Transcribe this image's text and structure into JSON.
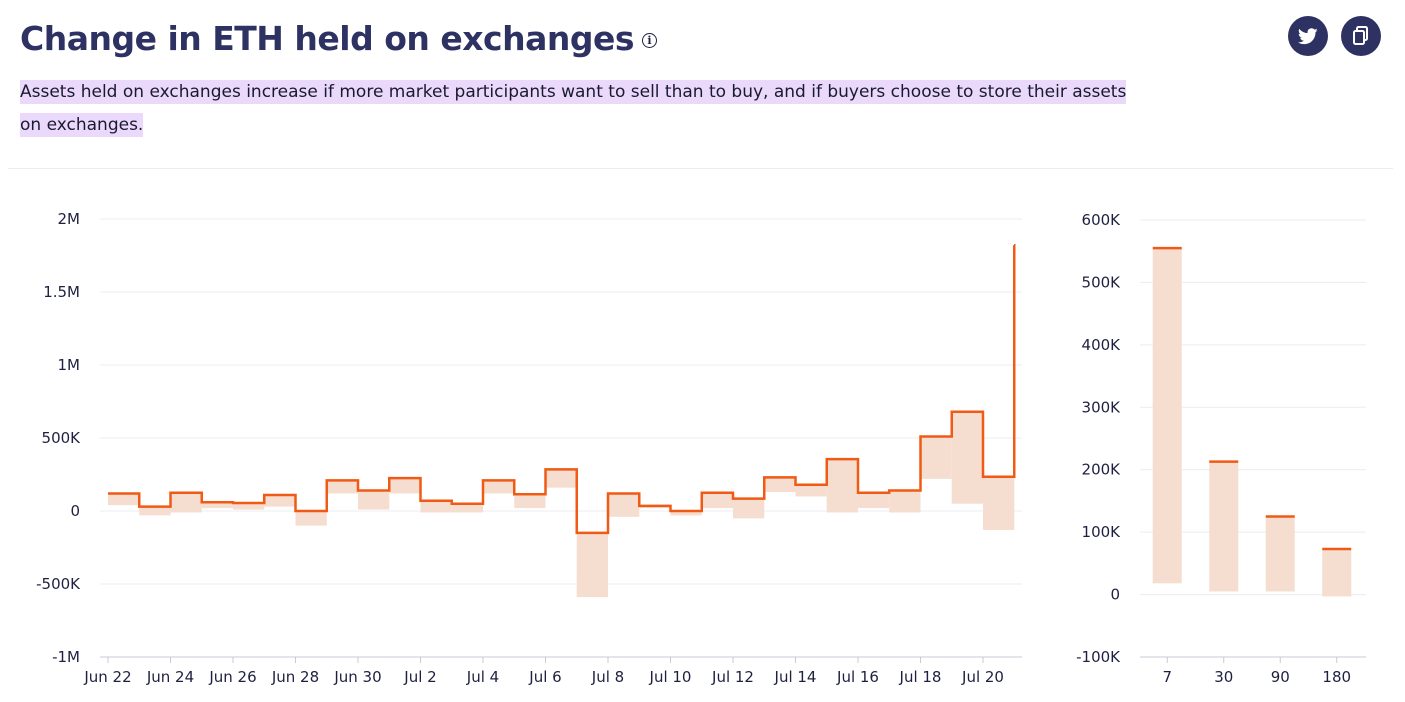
{
  "header": {
    "title": "Change in ETH held on exchanges",
    "info_icon": "info-icon",
    "description": "Assets held on exchanges increase if more market participants want to sell than to buy, and if buyers choose to store their assets on exchanges.",
    "share_buttons": [
      {
        "icon": "twitter-icon"
      },
      {
        "icon": "copy-icon"
      }
    ]
  },
  "colors": {
    "title": "#2e3262",
    "line": "#f05a14",
    "fill": "#f5ddd0",
    "highlight": "#ead9fb",
    "button": "#2e3262",
    "grid": "#ececf0"
  },
  "chart_data": [
    {
      "type": "line",
      "style": "step with shaded min-max band",
      "x_tick_labels": [
        "Jun 22",
        "Jun 24",
        "Jun 26",
        "Jun 28",
        "Jun 30",
        "Jul 2",
        "Jul 4",
        "Jul 6",
        "Jul 8",
        "Jul 10",
        "Jul 12",
        "Jul 14",
        "Jul 16",
        "Jul 18",
        "Jul 20"
      ],
      "y_tick_labels": [
        "2M",
        "1.5M",
        "1M",
        "500K",
        "0",
        "-500K",
        "-1M"
      ],
      "ylim": [
        -1000000,
        2000000
      ],
      "grid": true,
      "x": [
        "Jun 22",
        "Jun 23",
        "Jun 24",
        "Jun 25",
        "Jun 26",
        "Jun 27",
        "Jun 28",
        "Jun 29",
        "Jun 30",
        "Jul 1",
        "Jul 2",
        "Jul 3",
        "Jul 4",
        "Jul 5",
        "Jul 6",
        "Jul 7",
        "Jul 8",
        "Jul 9",
        "Jul 10",
        "Jul 11",
        "Jul 12",
        "Jul 13",
        "Jul 14",
        "Jul 15",
        "Jul 16",
        "Jul 17",
        "Jul 18",
        "Jul 19",
        "Jul 20",
        "Jul 21"
      ],
      "values": [
        120000,
        30000,
        125000,
        60000,
        55000,
        110000,
        0,
        210000,
        140000,
        225000,
        70000,
        50000,
        210000,
        115000,
        285000,
        -150000,
        120000,
        35000,
        0,
        125000,
        85000,
        230000,
        180000,
        355000,
        125000,
        140000,
        510000,
        680000,
        235000,
        1820000
      ],
      "band_low": [
        40000,
        -30000,
        -10000,
        20000,
        10000,
        30000,
        -100000,
        120000,
        10000,
        120000,
        -10000,
        -10000,
        120000,
        20000,
        160000,
        -590000,
        -40000,
        20000,
        -30000,
        20000,
        -50000,
        130000,
        100000,
        -10000,
        20000,
        -10000,
        220000,
        50000,
        -130000,
        -50000
      ],
      "band_high": [
        120000,
        30000,
        125000,
        60000,
        55000,
        110000,
        0,
        210000,
        140000,
        225000,
        70000,
        50000,
        210000,
        115000,
        285000,
        -150000,
        120000,
        35000,
        0,
        125000,
        85000,
        230000,
        180000,
        355000,
        125000,
        140000,
        510000,
        680000,
        235000,
        1820000
      ]
    },
    {
      "type": "bar",
      "style": "range bars with top marker",
      "categories": [
        "7",
        "30",
        "90",
        "180"
      ],
      "y_tick_labels": [
        "600K",
        "500K",
        "400K",
        "300K",
        "200K",
        "100K",
        "0",
        "-100K"
      ],
      "ylim": [
        -100000,
        600000
      ],
      "grid": true,
      "values": [
        555000,
        213000,
        125000,
        73000
      ],
      "range_low": [
        18000,
        5000,
        5000,
        -3000
      ]
    }
  ]
}
